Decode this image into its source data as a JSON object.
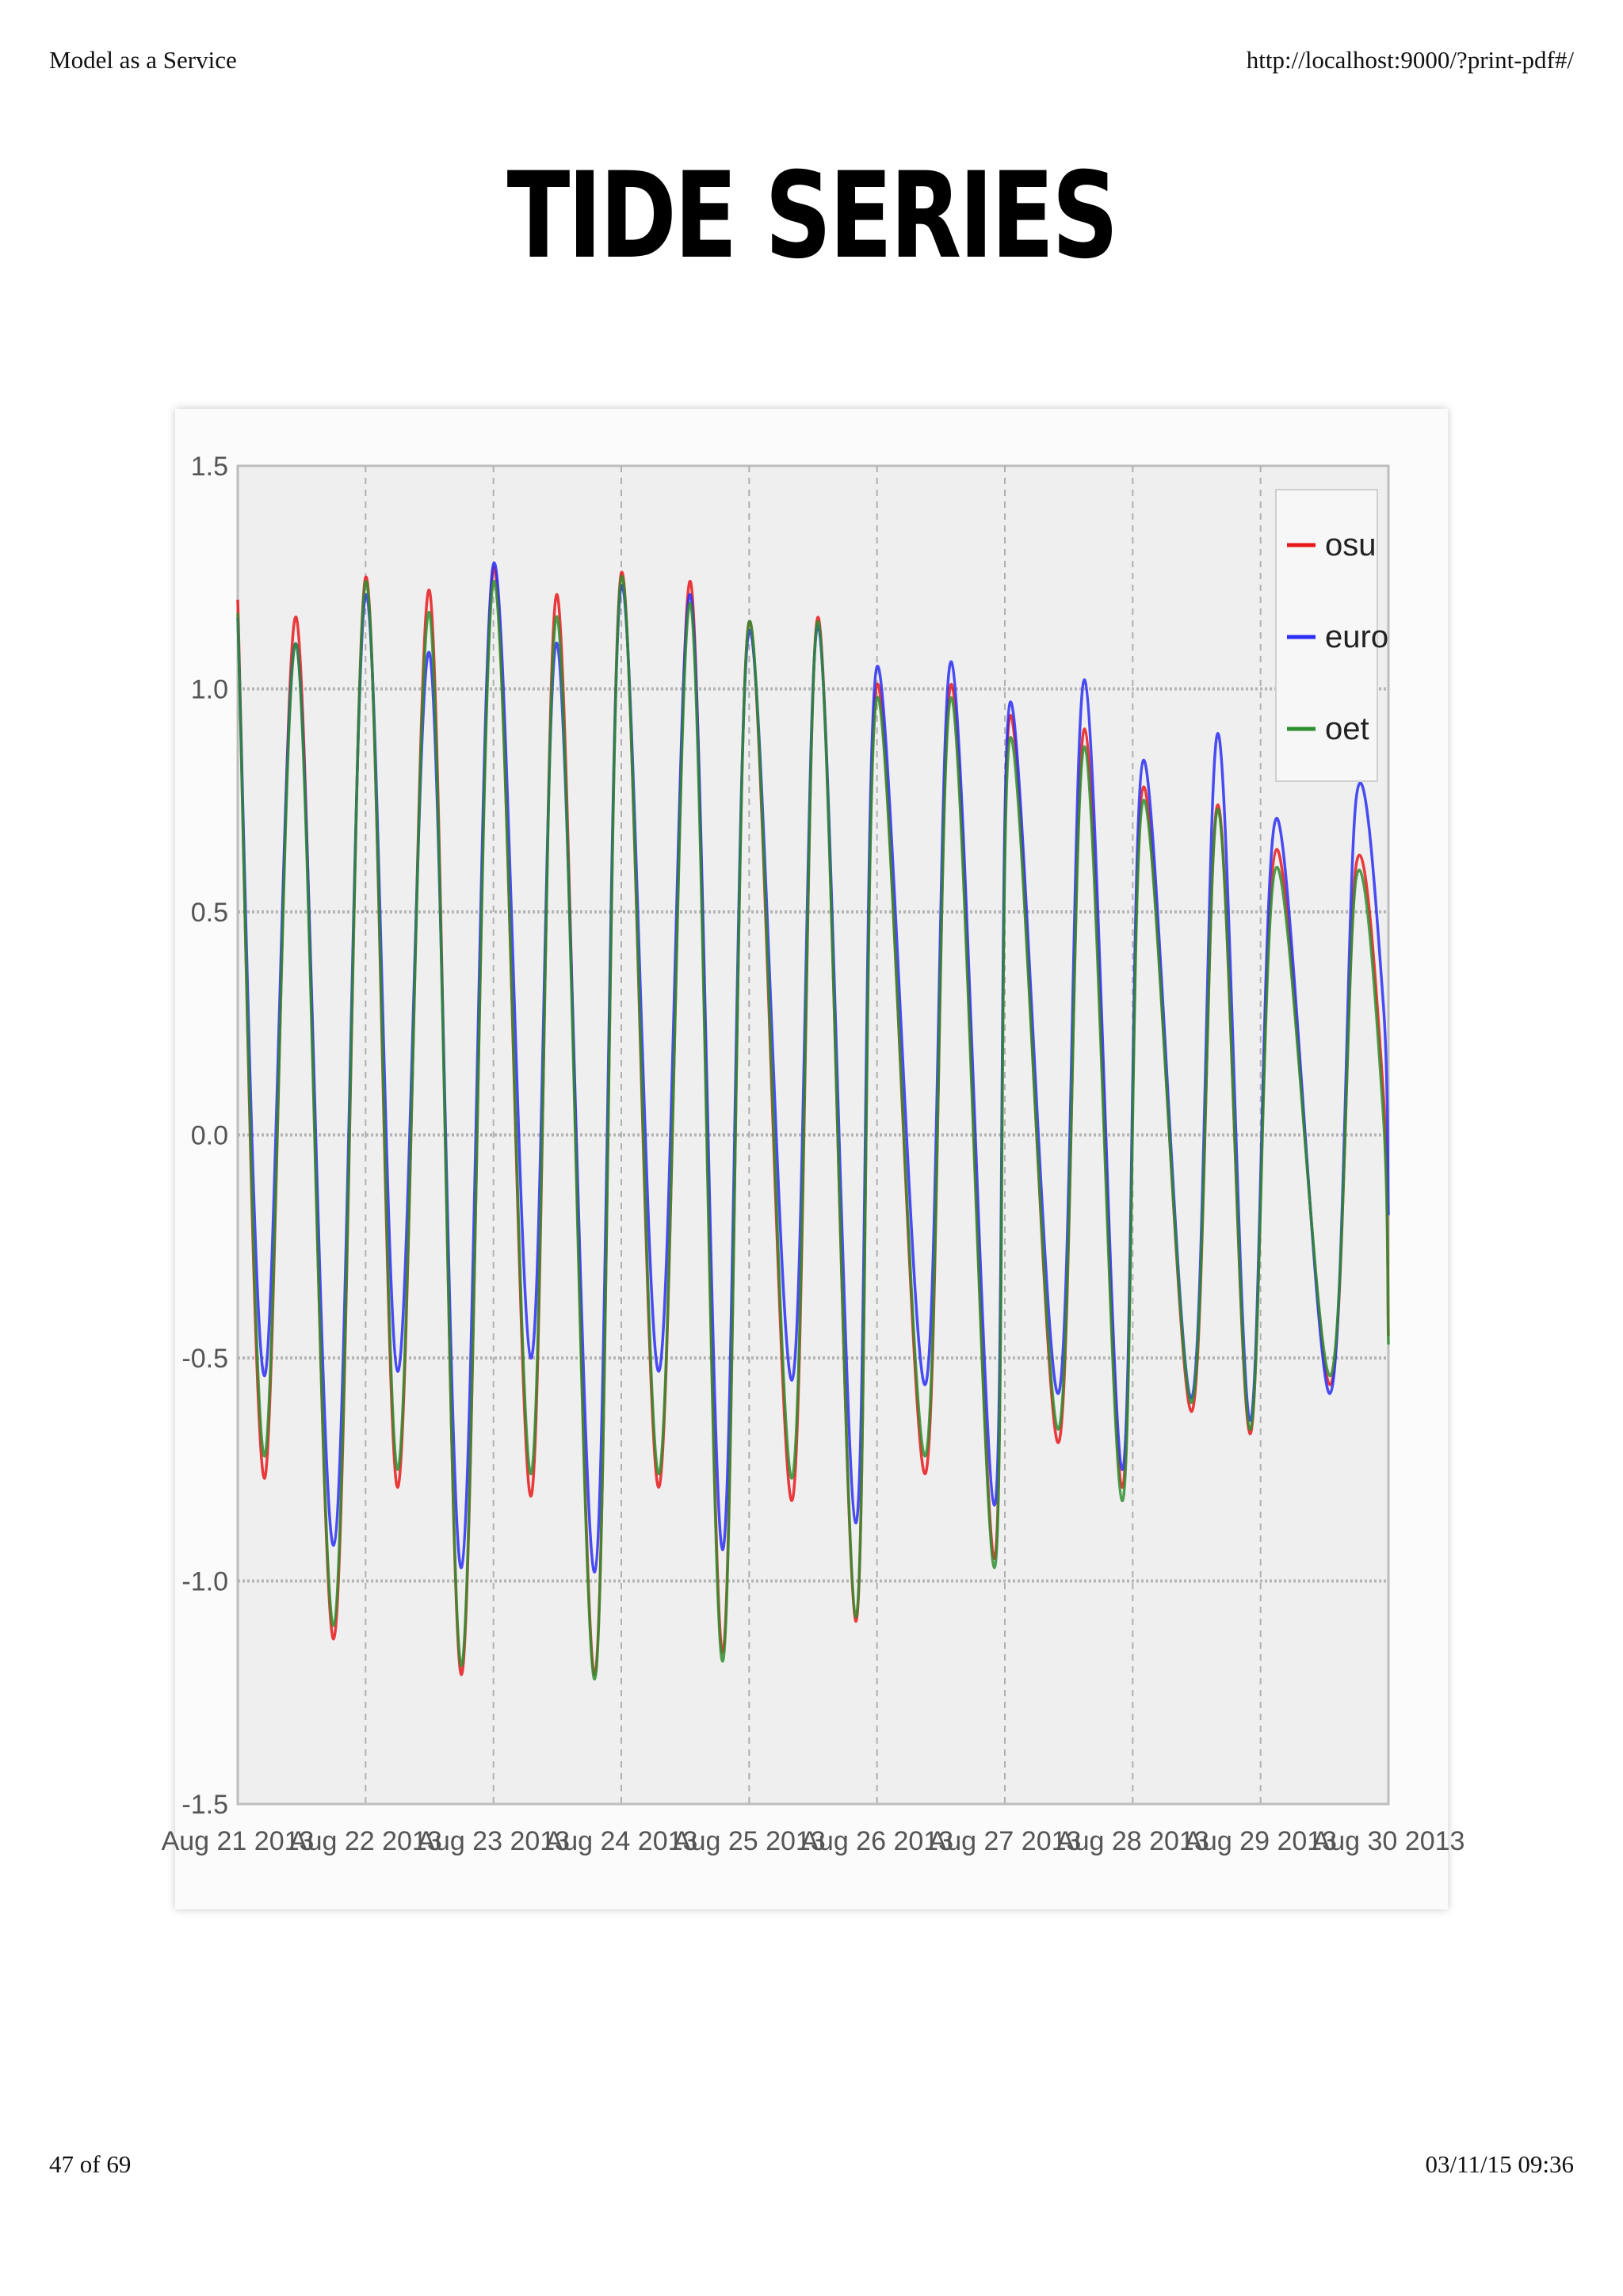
{
  "print": {
    "header_left": "Model as a Service",
    "header_right": "http://localhost:9000/?print-pdf#/",
    "footer_left": "47 of 69",
    "footer_right": "03/11/15 09:36"
  },
  "slide": {
    "title": "TIDE SERIES"
  },
  "chart_data": {
    "type": "line",
    "title": "",
    "xlabel": "",
    "ylabel": "",
    "xlim": [
      "2013-08-21",
      "2013-08-30"
    ],
    "ylim": [
      -1.5,
      1.5
    ],
    "x_tick_labels": [
      "Aug 21 2013",
      "Aug 22 2013",
      "Aug 23 2013",
      "Aug 24 2013",
      "Aug 25 2013",
      "Aug 26 2013",
      "Aug 27 2013",
      "Aug 28 2013",
      "Aug 29 2013",
      "Aug 30 2013"
    ],
    "y_tick_labels": [
      "1.5",
      "1.0",
      "0.5",
      "0.0",
      "-0.5",
      "-1.0",
      "-1.5"
    ],
    "y_ticks": [
      1.5,
      1.0,
      0.5,
      0.0,
      -0.5,
      -1.0,
      -1.5
    ],
    "grid": true,
    "legend_position": "top-right",
    "x": [
      "2013-08-21 00:00",
      "2013-08-21 05:00",
      "2013-08-21 11:00",
      "2013-08-21 18:00",
      "2013-08-22 00:00",
      "2013-08-22 06:00",
      "2013-08-22 12:00",
      "2013-08-22 18:00",
      "2013-08-23 00:00",
      "2013-08-23 07:00",
      "2013-08-23 12:00",
      "2013-08-23 19:00",
      "2013-08-24 00:00",
      "2013-08-24 07:00",
      "2013-08-24 13:00",
      "2013-08-24 19:00",
      "2013-08-25 00:00",
      "2013-08-25 08:00",
      "2013-08-25 13:00",
      "2013-08-25 20:00",
      "2013-08-26 00:00",
      "2013-08-26 09:00",
      "2013-08-26 14:00",
      "2013-08-26 22:00",
      "2013-08-27 01:00",
      "2013-08-27 10:00",
      "2013-08-27 15:00",
      "2013-08-27 22:00",
      "2013-08-28 02:00",
      "2013-08-28 11:00",
      "2013-08-28 16:00",
      "2013-08-28 22:00",
      "2013-08-29 03:00",
      "2013-08-29 13:00",
      "2013-08-29 18:00",
      "2013-08-29 23:00",
      "2013-08-30 00:00"
    ],
    "series": [
      {
        "name": "osu",
        "color": "#e8191b",
        "values": [
          1.2,
          -0.77,
          1.16,
          -1.13,
          1.25,
          -0.79,
          1.22,
          -1.21,
          1.27,
          -0.81,
          1.21,
          -1.21,
          1.26,
          -0.79,
          1.24,
          -1.16,
          1.15,
          -0.82,
          1.16,
          -1.09,
          1.01,
          -0.76,
          1.01,
          -0.95,
          0.94,
          -0.69,
          0.91,
          -0.79,
          0.78,
          -0.62,
          0.74,
          -0.67,
          0.64,
          -0.56,
          0.61,
          0.1,
          -0.45
        ]
      },
      {
        "name": "euro",
        "color": "#2a2ef5",
        "values": [
          1.16,
          -0.54,
          1.1,
          -0.92,
          1.21,
          -0.53,
          1.08,
          -0.97,
          1.28,
          -0.5,
          1.1,
          -0.98,
          1.23,
          -0.53,
          1.21,
          -0.93,
          1.13,
          -0.55,
          1.14,
          -0.87,
          1.05,
          -0.56,
          1.06,
          -0.83,
          0.97,
          -0.58,
          1.02,
          -0.75,
          0.84,
          -0.59,
          0.9,
          -0.64,
          0.71,
          -0.58,
          0.76,
          0.3,
          -0.18
        ]
      },
      {
        "name": "oet",
        "color": "#2f8e2f",
        "values": [
          1.17,
          -0.72,
          1.1,
          -1.1,
          1.24,
          -0.75,
          1.17,
          -1.19,
          1.24,
          -0.76,
          1.16,
          -1.22,
          1.25,
          -0.76,
          1.19,
          -1.18,
          1.15,
          -0.77,
          1.15,
          -1.08,
          0.98,
          -0.72,
          0.98,
          -0.97,
          0.89,
          -0.66,
          0.87,
          -0.82,
          0.75,
          -0.6,
          0.73,
          -0.66,
          0.6,
          -0.54,
          0.58,
          0.05,
          -0.47
        ]
      }
    ]
  }
}
